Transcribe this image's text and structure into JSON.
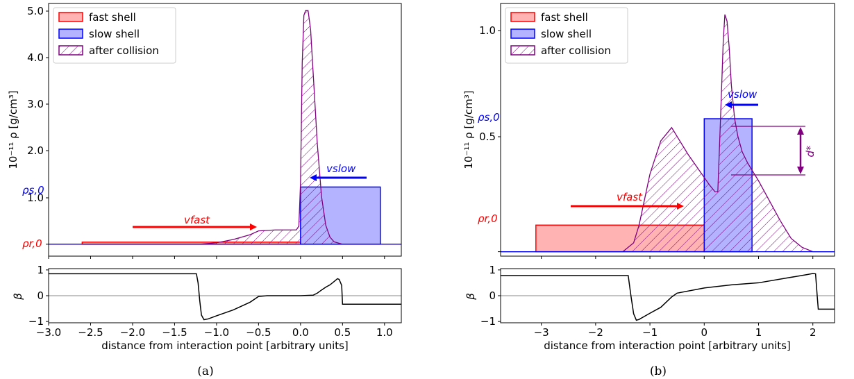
{
  "colors": {
    "fast": "#ff0000",
    "fast_fill": "#ffb3b3",
    "slow": "#0000ff",
    "slow_fill": "#b3b3ff",
    "after": "#800080",
    "beta": "#000000"
  },
  "figures": [
    {
      "caption": "(a)",
      "xlabel": "distance from interaction point [arbitrary units]",
      "ylabel_top": "10⁻¹¹ ρ [g/cm³]",
      "ylabel_beta": "β",
      "legend": [
        "fast shell",
        "slow shell",
        "after collision"
      ],
      "rho_r_label": "ρr,0",
      "rho_s_label": "ρs,0",
      "v_fast_label": "vfast",
      "v_slow_label": "vslow"
    },
    {
      "caption": "(b)",
      "xlabel": "distance from interaction point [arbitrary units]",
      "ylabel_top": "10⁻¹¹ ρ [g/cm³]",
      "ylabel_beta": "β",
      "legend": [
        "fast shell",
        "slow shell",
        "after collision"
      ],
      "rho_r_label": "ρr,0",
      "rho_s_label": "ρs,0",
      "v_fast_label": "vfast",
      "v_slow_label": "vslow",
      "d_label": "d*"
    }
  ],
  "chart_data": [
    {
      "type": "area",
      "title": "",
      "xlabel": "distance from interaction point [arbitrary units]",
      "ylabel": "10⁻¹¹ ρ [g/cm³]",
      "xlim": [
        -3.0,
        1.2
      ],
      "ylim": [
        -0.25,
        5.05
      ],
      "xticks": [
        "−3.0",
        "−2.5",
        "−2.0",
        "−1.5",
        "−1.0",
        "−0.5",
        "0.0",
        "0.5",
        "1.0"
      ],
      "yticks": [
        "1.0",
        "2.0",
        "3.0",
        "4.0",
        "5.0"
      ],
      "rho_r0": 0.0,
      "rho_s0": 1.2,
      "fast_shell": {
        "x0": -2.6,
        "x1": 0.0,
        "rho": 0.05
      },
      "slow_shell": {
        "x0": 0.0,
        "x1": 0.95,
        "rho": 1.2
      },
      "after_collision": {
        "x": [
          -3.0,
          -1.4,
          -1.2,
          -1.0,
          -0.8,
          -0.6,
          -0.5,
          -0.3,
          -0.05,
          -0.02,
          0.0,
          0.02,
          0.04,
          0.06,
          0.09,
          0.12,
          0.16,
          0.2,
          0.25,
          0.3,
          0.35,
          0.4,
          0.5,
          1.2
        ],
        "y": [
          0.0,
          0.0,
          0.0,
          0.03,
          0.1,
          0.2,
          0.28,
          0.3,
          0.3,
          0.38,
          1.3,
          3.8,
          4.8,
          4.9,
          4.9,
          4.5,
          3.3,
          2.1,
          1.0,
          0.4,
          0.15,
          0.05,
          0.0,
          0.0
        ]
      },
      "beta": {
        "xlim": [
          -3.0,
          1.2
        ],
        "ylim": [
          -1.05,
          1.05
        ],
        "yticks": [
          "−1",
          "0",
          "1"
        ],
        "x": [
          -3.0,
          -1.24,
          -1.22,
          -1.2,
          -1.18,
          -1.15,
          -1.1,
          -1.0,
          -0.8,
          -0.6,
          -0.5,
          -0.4,
          -0.2,
          0.0,
          0.15,
          0.2,
          0.25,
          0.3,
          0.35,
          0.4,
          0.44,
          0.46,
          0.49,
          0.5,
          0.52,
          1.2
        ],
        "y": [
          0.85,
          0.85,
          0.5,
          -0.2,
          -0.75,
          -0.93,
          -0.9,
          -0.78,
          -0.55,
          -0.25,
          -0.03,
          0.0,
          0.0,
          0.0,
          0.02,
          0.1,
          0.22,
          0.33,
          0.42,
          0.55,
          0.66,
          0.63,
          0.4,
          -0.33,
          -0.33,
          -0.33
        ]
      }
    },
    {
      "type": "area",
      "title": "",
      "xlabel": "distance from interaction point [arbitrary units]",
      "ylabel": "10⁻¹¹ ρ [g/cm³]",
      "xlim": [
        -3.75,
        2.4
      ],
      "ylim": [
        -0.02,
        1.12
      ],
      "xticks": [
        "−3",
        "−2",
        "−1",
        "0",
        "1",
        "2"
      ],
      "yticks": [
        "0.5",
        "1.0"
      ],
      "rho_r0": 0.12,
      "rho_s0": 0.6,
      "fast_shell": {
        "x0": -3.1,
        "x1": 0.0,
        "rho": 0.12
      },
      "slow_shell": {
        "x0": 0.0,
        "x1": 0.88,
        "rho": 0.6
      },
      "after_collision": {
        "x": [
          -3.75,
          -1.5,
          -1.3,
          -1.2,
          -1.0,
          -0.8,
          -0.6,
          -0.5,
          -0.3,
          -0.1,
          0.1,
          0.2,
          0.25,
          0.3,
          0.35,
          0.38,
          0.42,
          0.46,
          0.5,
          0.56,
          0.62,
          0.7,
          0.8,
          1.0,
          1.2,
          1.4,
          1.6,
          1.8,
          2.0,
          2.4
        ],
        "y": [
          0.0,
          0.0,
          0.04,
          0.12,
          0.35,
          0.5,
          0.56,
          0.52,
          0.44,
          0.37,
          0.3,
          0.27,
          0.27,
          0.6,
          0.95,
          1.07,
          1.04,
          0.92,
          0.75,
          0.6,
          0.52,
          0.45,
          0.4,
          0.32,
          0.23,
          0.14,
          0.06,
          0.02,
          0.0,
          0.0
        ]
      },
      "beta": {
        "xlim": [
          -3.75,
          2.4
        ],
        "ylim": [
          -1.05,
          1.05
        ],
        "yticks": [
          "−1",
          "0",
          "1"
        ],
        "x": [
          -3.75,
          -1.4,
          -1.35,
          -1.3,
          -1.25,
          -1.2,
          -1.0,
          -0.8,
          -0.6,
          -0.5,
          0.0,
          0.5,
          1.0,
          1.5,
          1.9,
          2.0,
          2.05,
          2.08,
          2.1,
          2.4
        ],
        "y": [
          0.78,
          0.78,
          0.0,
          -0.7,
          -0.95,
          -0.92,
          -0.68,
          -0.45,
          -0.05,
          0.1,
          0.3,
          0.42,
          0.5,
          0.68,
          0.82,
          0.86,
          0.85,
          0.0,
          -0.52,
          -0.52
        ]
      }
    }
  ]
}
